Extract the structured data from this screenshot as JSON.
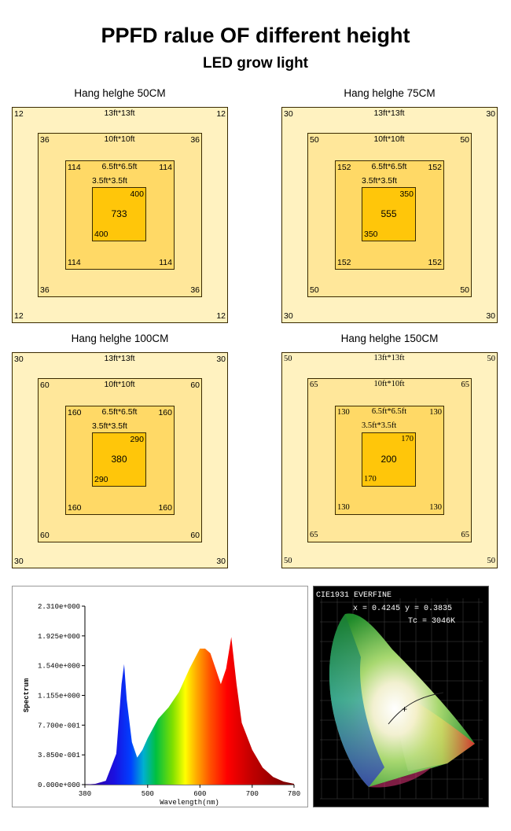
{
  "title": "PPFD ralue OF different height",
  "subtitle": "LED grow light",
  "panels": [
    {
      "caption": "Hang helghe 50CM",
      "serif": false,
      "zones": [
        {
          "size": "13ft*13ft",
          "tl": "12",
          "tr": "12",
          "bl": "12",
          "br": "12"
        },
        {
          "size": "10ft*10ft",
          "tl": "36",
          "tr": "36",
          "bl": "36",
          "br": "36"
        },
        {
          "size": "6.5ft*6.5ft",
          "tl": "114",
          "tr": "114",
          "bl": "114",
          "br": "114"
        },
        {
          "size": "3.5ft*3.5ft",
          "tr": "400",
          "bl": "400",
          "center": "733"
        }
      ]
    },
    {
      "caption": "Hang helghe 75CM",
      "serif": false,
      "zones": [
        {
          "size": "13ft*13ft",
          "tl": "30",
          "tr": "30",
          "bl": "30",
          "br": "30"
        },
        {
          "size": "10ft*10ft",
          "tl": "50",
          "tr": "50",
          "bl": "50",
          "br": "50"
        },
        {
          "size": "6.5ft*6.5ft",
          "tl": "152",
          "tr": "152",
          "bl": "152",
          "br": "152"
        },
        {
          "size": "3.5ft*3.5ft",
          "tr": "350",
          "bl": "350",
          "center": "555"
        }
      ]
    },
    {
      "caption": "Hang helghe 100CM",
      "serif": false,
      "zones": [
        {
          "size": "13ft*13ft",
          "tl": "30",
          "tr": "30",
          "bl": "30",
          "br": "30"
        },
        {
          "size": "10ft*10ft",
          "tl": "60",
          "tr": "60",
          "bl": "60",
          "br": "60"
        },
        {
          "size": "6.5ft*6.5ft",
          "tl": "160",
          "tr": "160",
          "bl": "160",
          "br": "160"
        },
        {
          "size": "3.5ft*3.5ft",
          "tr": "290",
          "bl": "290",
          "center": "380"
        }
      ]
    },
    {
      "caption": "Hang helghe 150CM",
      "serif": true,
      "zones": [
        {
          "size": "13ft*13ft",
          "tl": "50",
          "tr": "50",
          "bl": "50",
          "br": "50"
        },
        {
          "size": "10ft*10ft",
          "tl": "65",
          "tr": "65",
          "bl": "65",
          "br": "65"
        },
        {
          "size": "6.5ft*6.5ft",
          "tl": "130",
          "tr": "130",
          "bl": "130",
          "br": "130"
        },
        {
          "size": "3.5ft*3.5ft",
          "tr": "170",
          "bl": "170",
          "center": "200"
        }
      ]
    }
  ],
  "spectrum": {
    "ylabel": "Spectrum",
    "xlabel": "Wavelength(nm)",
    "yticks": [
      "2.310e+000",
      "1.925e+000",
      "1.540e+000",
      "1.155e+000",
      "7.700e-001",
      "3.850e-001",
      "0.000e+000"
    ],
    "xticks": [
      "380",
      "500",
      "600",
      "700",
      "780"
    ]
  },
  "cie": {
    "header": "CIE1931 EVERFINE",
    "xy_readout": "x = 0.4245  y = 0.3835",
    "tc_readout": "Tc = 3046K"
  },
  "chart_data": {
    "type": "area",
    "x": [
      380,
      400,
      420,
      440,
      450,
      455,
      460,
      470,
      480,
      490,
      500,
      520,
      540,
      560,
      580,
      600,
      610,
      620,
      630,
      640,
      650,
      660,
      670,
      680,
      700,
      720,
      740,
      760,
      780
    ],
    "series": [
      {
        "values": [
          0,
          0.01,
          0.05,
          0.4,
          1.3,
          1.56,
          1.1,
          0.55,
          0.35,
          0.45,
          0.6,
          0.85,
          1.0,
          1.2,
          1.5,
          1.76,
          1.76,
          1.7,
          1.5,
          1.3,
          1.5,
          1.91,
          1.3,
          0.8,
          0.45,
          0.22,
          0.1,
          0.04,
          0.01
        ]
      }
    ],
    "xlabel": "Wavelength(nm)",
    "ylabel": "Spectrum",
    "xlim": [
      380,
      780
    ],
    "ylim": [
      0,
      2.31
    ]
  }
}
